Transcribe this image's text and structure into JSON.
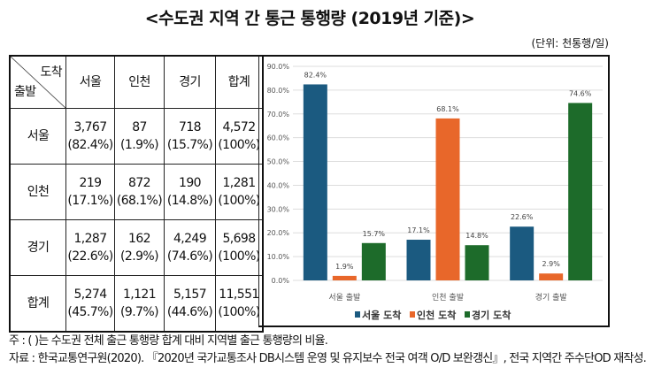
{
  "title": "<수도권 지역 간 통근 통행량 (2019년 기준)>",
  "unit": "(단위: 천통행/일)",
  "table": {
    "corner_top": "도착",
    "corner_bottom": "출발",
    "columns": [
      "서울",
      "인천",
      "경기",
      "합계"
    ],
    "rows": [
      {
        "label": "서울",
        "cells": [
          [
            "3,767",
            "(82.4%)"
          ],
          [
            "87",
            "(1.9%)"
          ],
          [
            "718",
            "(15.7%)"
          ],
          [
            "4,572",
            "(100%)"
          ]
        ]
      },
      {
        "label": "인천",
        "cells": [
          [
            "219",
            "(17.1%)"
          ],
          [
            "872",
            "(68.1%)"
          ],
          [
            "190",
            "(14.8%)"
          ],
          [
            "1,281",
            "(100%)"
          ]
        ]
      },
      {
        "label": "경기",
        "cells": [
          [
            "1,287",
            "(22.6%)"
          ],
          [
            "162",
            "(2.9%)"
          ],
          [
            "4,249",
            "(74.6%)"
          ],
          [
            "5,698",
            "(100%)"
          ]
        ]
      },
      {
        "label": "합계",
        "cells": [
          [
            "5,274",
            "(45.7%)"
          ],
          [
            "1,121",
            "(9.7%)"
          ],
          [
            "5,157",
            "(44.6%)"
          ],
          [
            "11,551",
            "(100%)"
          ]
        ]
      }
    ]
  },
  "chart_data": {
    "type": "bar",
    "categories": [
      "서울 출발",
      "인천 출발",
      "경기 출발"
    ],
    "series": [
      {
        "name": "서울 도착",
        "color": "#1b5a80",
        "values": [
          82.4,
          17.1,
          22.6
        ]
      },
      {
        "name": "인천 도착",
        "color": "#e8672a",
        "values": [
          1.9,
          68.1,
          2.9
        ]
      },
      {
        "name": "경기 도착",
        "color": "#1d6b2a",
        "values": [
          15.7,
          14.8,
          74.6
        ]
      }
    ],
    "ylim": [
      0,
      90
    ],
    "yticks": [
      "0.0%",
      "10.0%",
      "20.0%",
      "30.0%",
      "40.0%",
      "50.0%",
      "60.0%",
      "70.0%",
      "80.0%",
      "90.0%"
    ],
    "grid": true,
    "legend": "bottom"
  },
  "notes": [
    "주 : (   )는 수도권 전체 출근 통행량 합계 대비 지역별 출근 통행량의 비율.",
    "자료 : 한국교통연구원(2020). 『2020년 국가교통조사 DB시스템 운영 및 유지보수 전국 여객 O/D 보완갱신』, 전국 지역간 주수단OD 재작성."
  ]
}
